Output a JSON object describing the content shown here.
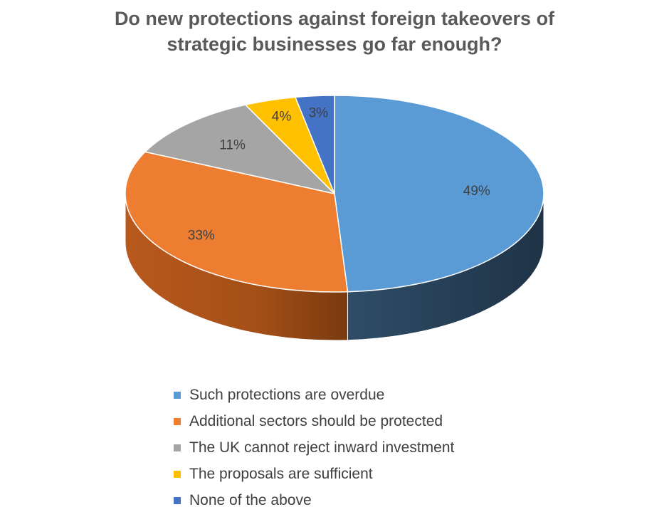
{
  "chart_data": {
    "type": "pie",
    "title_lines": [
      "Do new protections against foreign takeovers of",
      "strategic businesses go far enough?"
    ],
    "slices": [
      {
        "label": "Such protections are overdue",
        "value": 49,
        "data_label": "49%",
        "color": "#5b9bd5"
      },
      {
        "label": "Additional sectors should be protected",
        "value": 33,
        "data_label": "33%",
        "color": "#ed7d31"
      },
      {
        "label": "The UK cannot reject inward investment",
        "value": 11,
        "data_label": "11%",
        "color": "#a5a5a5"
      },
      {
        "label": "The proposals are sufficient",
        "value": 4,
        "data_label": "4%",
        "color": "#ffc000"
      },
      {
        "label": "None of the above",
        "value": 3,
        "data_label": "3%",
        "color": "#4472c4"
      }
    ],
    "style": "3d",
    "legend_position": "bottom"
  }
}
